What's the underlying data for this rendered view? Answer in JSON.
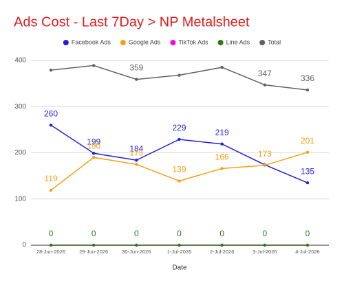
{
  "chart_data": {
    "type": "line",
    "title": "Ads Cost - Last 7Day > NP Metalsheet",
    "x_label": "Date",
    "categories": [
      "28-Jun-2026",
      "29-Jun-2026",
      "30-Jun-2026",
      "1-Jul-2026",
      "2-Jul-2026",
      "3-Jul-2026",
      "4-Jul-2026"
    ],
    "series": [
      {
        "name": "Facebook Ads",
        "color": "#1f1fe6",
        "values": [
          260,
          199,
          184,
          229,
          219,
          174,
          135
        ],
        "value_labels": [
          "260",
          "199",
          "184",
          "229",
          "219",
          null,
          "135"
        ]
      },
      {
        "name": "Google Ads",
        "color": "#f59f12",
        "values": [
          119,
          190,
          175,
          139,
          166,
          173,
          201
        ],
        "value_labels": [
          "119",
          "190",
          "175",
          "139",
          "166",
          "173",
          "201"
        ]
      },
      {
        "name": "TikTok Ads",
        "color": "#ff00ff",
        "values": [
          0,
          0,
          0,
          0,
          0,
          0,
          0
        ],
        "value_labels": [
          null,
          null,
          null,
          null,
          null,
          null,
          null
        ]
      },
      {
        "name": "Line Ads",
        "color": "#2f7a14",
        "values": [
          0,
          0,
          0,
          0,
          0,
          0,
          0
        ],
        "value_labels": [
          "0",
          "0",
          "0",
          "0",
          "0",
          "0",
          "0"
        ]
      },
      {
        "name": "Total",
        "color": "#616161",
        "values": [
          379,
          389,
          359,
          368,
          385,
          347,
          336
        ],
        "value_labels": [
          null,
          null,
          "359",
          null,
          null,
          "347",
          "336"
        ]
      }
    ],
    "ylim": [
      0,
      400
    ],
    "yticks": [
      0,
      100,
      200,
      300,
      400
    ],
    "grid": true,
    "legend": "top"
  }
}
